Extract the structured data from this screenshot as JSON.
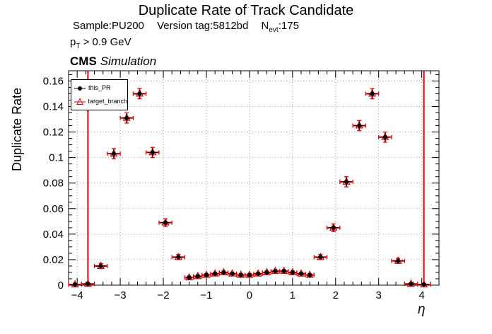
{
  "header": {
    "title": "Duplicate Rate of Track Candidate",
    "sample": "Sample:PU200",
    "version": "Version tag:5812bd",
    "nevt": {
      "prefix": "N",
      "sub": "evt",
      "suffix": ":175"
    },
    "pt": {
      "prefix": "p",
      "sub": "T",
      "suffix": " > 0.9 GeV"
    },
    "cms": {
      "bold": "CMS",
      "italic": "Simulation"
    }
  },
  "chart_data": {
    "type": "scatter",
    "title": "Duplicate Rate of Track Candidate",
    "xlabel": "η",
    "ylabel": "Duplicate Rate",
    "xlim": [
      -4.2,
      4.4
    ],
    "ylim": [
      0,
      0.168
    ],
    "xticks": [
      -4,
      -3,
      -2,
      -1,
      0,
      1,
      2,
      3,
      4
    ],
    "yticks": [
      0,
      0.02,
      0.04,
      0.06,
      0.08,
      0.1,
      0.12,
      0.14,
      0.16
    ],
    "grid": true,
    "legend_position": "top-left",
    "x": [
      -4.05,
      -3.75,
      -3.45,
      -3.15,
      -2.85,
      -2.55,
      -2.25,
      -1.95,
      -1.65,
      -1.4,
      -1.2,
      -1.0,
      -0.8,
      -0.6,
      -0.4,
      -0.2,
      0.0,
      0.2,
      0.4,
      0.6,
      0.8,
      1.0,
      1.2,
      1.4,
      1.65,
      1.95,
      2.25,
      2.55,
      2.85,
      3.15,
      3.45,
      3.75,
      4.05
    ],
    "xerr": [
      0.15,
      0.15,
      0.15,
      0.15,
      0.15,
      0.15,
      0.15,
      0.15,
      0.15,
      0.1,
      0.1,
      0.1,
      0.1,
      0.1,
      0.1,
      0.1,
      0.1,
      0.1,
      0.1,
      0.1,
      0.1,
      0.1,
      0.1,
      0.1,
      0.15,
      0.15,
      0.15,
      0.15,
      0.15,
      0.15,
      0.15,
      0.15,
      0.15
    ],
    "y": [
      0.0005,
      0.001,
      0.015,
      0.103,
      0.131,
      0.15,
      0.104,
      0.049,
      0.022,
      0.006,
      0.007,
      0.008,
      0.009,
      0.01,
      0.009,
      0.008,
      0.008,
      0.009,
      0.01,
      0.011,
      0.011,
      0.01,
      0.009,
      0.008,
      0.022,
      0.045,
      0.081,
      0.125,
      0.15,
      0.116,
      0.019,
      0.001,
      0.0005
    ],
    "yerr": [
      0.001,
      0.001,
      0.002,
      0.004,
      0.004,
      0.004,
      0.004,
      0.003,
      0.002,
      0.001,
      0.001,
      0.001,
      0.001,
      0.001,
      0.001,
      0.001,
      0.001,
      0.001,
      0.001,
      0.001,
      0.001,
      0.001,
      0.001,
      0.001,
      0.002,
      0.003,
      0.004,
      0.004,
      0.004,
      0.004,
      0.002,
      0.001,
      0.001
    ],
    "series": [
      {
        "name": "this_PR",
        "marker": "filled-circle",
        "color": "#000000"
      },
      {
        "name": "target_branch",
        "marker": "open-triangle",
        "color": "#e00000"
      }
    ],
    "vlines": {
      "x": [
        -3.75,
        4.05
      ],
      "color": "#e00000"
    }
  }
}
